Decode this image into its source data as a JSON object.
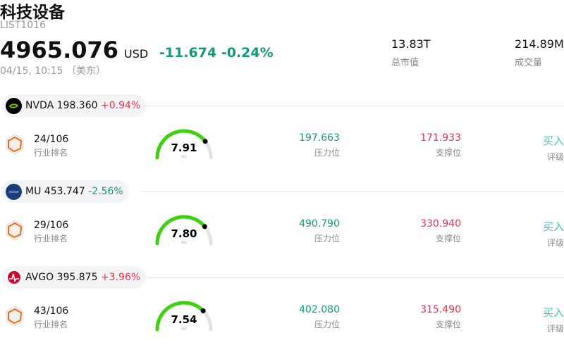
{
  "header": {
    "title": "科技设备",
    "code": "LIST1016",
    "price": "4965.076",
    "currency": "USD",
    "change": "-11.674",
    "change_pct": "-0.24%",
    "time": "04/15, 10:15 （美东）",
    "stats": [
      {
        "value": "13.83T",
        "label": "总市值"
      },
      {
        "value": "214.89M",
        "label": "成交量"
      }
    ]
  },
  "colors": {
    "up": "#f0304a",
    "down": "#13977d",
    "gauge": "#3fd10f",
    "buy": "#3cc7b8"
  },
  "stocks": [
    {
      "symbol": "NVDA",
      "price": "198.360",
      "change_pct": "+0.94%",
      "dir": "up",
      "logo": "nvidia-logo",
      "rank": "24/106",
      "rank_label": "行业排名",
      "score": 7.91,
      "score_text": "7.91",
      "score_label": "评分",
      "resistance": "197.663",
      "resistance_label": "压力位",
      "support": "171.933",
      "support_label": "支撑位",
      "rating": "买入",
      "rating_label": "评级"
    },
    {
      "symbol": "MU",
      "price": "453.747",
      "change_pct": "-2.56%",
      "dir": "down",
      "logo": "micron-logo",
      "rank": "29/106",
      "rank_label": "行业排名",
      "score": 7.8,
      "score_text": "7.80",
      "score_label": "评分",
      "resistance": "490.790",
      "resistance_label": "压力位",
      "support": "330.940",
      "support_label": "支撑位",
      "rating": "买入",
      "rating_label": "评级"
    },
    {
      "symbol": "AVGO",
      "price": "395.875",
      "change_pct": "+3.96%",
      "dir": "up",
      "logo": "broadcom-logo",
      "rank": "43/106",
      "rank_label": "行业排名",
      "score": 7.54,
      "score_text": "7.54",
      "score_label": "评分",
      "resistance": "402.080",
      "resistance_label": "压力位",
      "support": "315.490",
      "support_label": "支撑位",
      "rating": "买入",
      "rating_label": "评级"
    }
  ]
}
